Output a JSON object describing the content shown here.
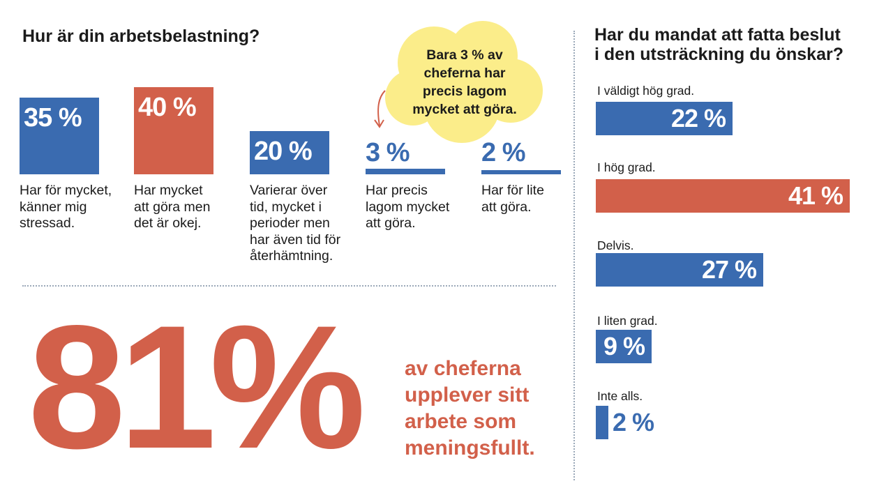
{
  "colors": {
    "blue": "#3a6bb0",
    "orange": "#d2604a",
    "yellow": "#fbed8a"
  },
  "left": {
    "title": "Hur är din arbetsbelastning?",
    "bars": [
      {
        "value_label": "35 %",
        "value": 35,
        "label": "Har för mycket,\nkänner mig\nstressad.",
        "color": "blue"
      },
      {
        "value_label": "40 %",
        "value": 40,
        "label": "Har mycket\natt göra men\ndet är okej.",
        "color": "orange"
      },
      {
        "value_label": "20 %",
        "value": 20,
        "label": "Varierar över\ntid, mycket i\nperioder men\nhar även tid för\nåterhämtning.",
        "color": "blue"
      },
      {
        "value_label": "3 %",
        "value": 3,
        "label": "Har precis\nlagom mycket\natt göra.",
        "color": "blue"
      },
      {
        "value_label": "2 %",
        "value": 2,
        "label": "Har för lite\natt göra.",
        "color": "blue"
      }
    ],
    "bubble": "Bara 3 % av\ncheferna har\nprecis lagom\nmycket att göra."
  },
  "highlight": {
    "number": "81%",
    "caption": "av cheferna\nupplever sitt\narbete som\nmeningsfullt."
  },
  "right": {
    "title": "Har du mandat att fatta beslut\ni den utsträckning du önskar?",
    "bars": [
      {
        "label": "I väldigt hög grad.",
        "value_label": "22 %",
        "value": 22,
        "color": "blue"
      },
      {
        "label": "I hög grad.",
        "value_label": "41 %",
        "value": 41,
        "color": "orange"
      },
      {
        "label": "Delvis.",
        "value_label": "27 %",
        "value": 27,
        "color": "blue"
      },
      {
        "label": "I liten grad.",
        "value_label": "9 %",
        "value": 9,
        "color": "blue"
      },
      {
        "label": "Inte alls.",
        "value_label": "2 %",
        "value": 2,
        "color": "blue"
      }
    ]
  },
  "chart_data": [
    {
      "type": "bar",
      "title": "Hur är din arbetsbelastning?",
      "categories": [
        "Har för mycket, känner mig stressad.",
        "Har mycket att göra men det är okej.",
        "Varierar över tid, mycket i perioder men har även tid för återhämtning.",
        "Har precis lagom mycket att göra.",
        "Har för lite att göra."
      ],
      "values": [
        35,
        40,
        20,
        3,
        2
      ]
    },
    {
      "type": "bar",
      "title": "Har du mandat att fatta beslut i den utsträckning du önskar?",
      "categories": [
        "I väldigt hög grad.",
        "I hög grad.",
        "Delvis.",
        "I liten grad.",
        "Inte alls."
      ],
      "values": [
        22,
        41,
        27,
        9,
        2
      ]
    }
  ]
}
